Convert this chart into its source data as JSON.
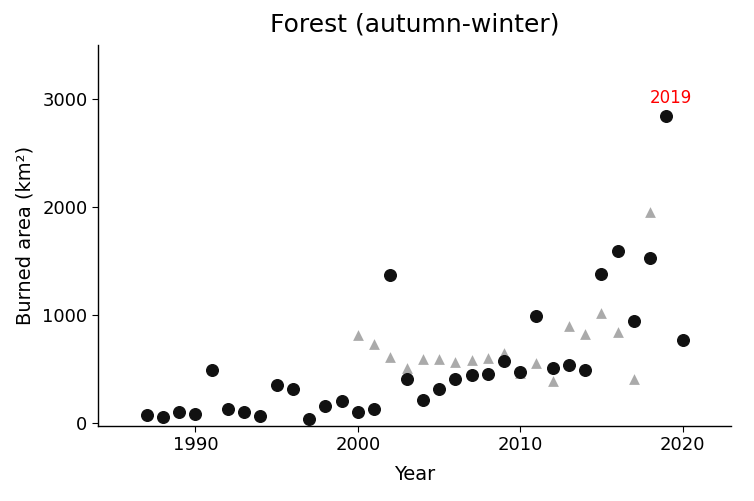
{
  "title": "Forest (autumn-winter)",
  "xlabel": "Year",
  "ylabel": "Burned area (km²)",
  "title_fontsize": 18,
  "label_fontsize": 14,
  "tick_fontsize": 13,
  "annotation_label": "2019",
  "annotation_color": "red",
  "annotation_fontsize": 12,
  "xlim": [
    1984,
    2023
  ],
  "ylim": [
    -30,
    3500
  ],
  "yticks": [
    0,
    1000,
    2000,
    3000
  ],
  "xticks": [
    1990,
    2000,
    2010,
    2020
  ],
  "background_color": "#ffffff",
  "circle_color": "#111111",
  "triangle_color": "#aaaaaa",
  "fit_color": "#111111",
  "fit_xlim": [
    1986,
    2018.5
  ],
  "circles": [
    [
      1987,
      70
    ],
    [
      1988,
      55
    ],
    [
      1989,
      100
    ],
    [
      1990,
      80
    ],
    [
      1991,
      490
    ],
    [
      1992,
      130
    ],
    [
      1993,
      100
    ],
    [
      1994,
      60
    ],
    [
      1995,
      350
    ],
    [
      1996,
      310
    ],
    [
      1997,
      30
    ],
    [
      1998,
      150
    ],
    [
      1999,
      200
    ],
    [
      2000,
      100
    ],
    [
      2001,
      130
    ],
    [
      2002,
      1370
    ],
    [
      2003,
      400
    ],
    [
      2004,
      210
    ],
    [
      2005,
      310
    ],
    [
      2006,
      400
    ],
    [
      2007,
      440
    ],
    [
      2008,
      450
    ],
    [
      2009,
      570
    ],
    [
      2010,
      470
    ],
    [
      2011,
      990
    ],
    [
      2012,
      510
    ],
    [
      2013,
      530
    ],
    [
      2014,
      490
    ],
    [
      2015,
      1380
    ],
    [
      2016,
      1590
    ],
    [
      2017,
      940
    ],
    [
      2018,
      1530
    ],
    [
      2019,
      2840
    ],
    [
      2020,
      770
    ]
  ],
  "triangles": [
    [
      2000,
      810
    ],
    [
      2001,
      730
    ],
    [
      2002,
      610
    ],
    [
      2003,
      510
    ],
    [
      2004,
      590
    ],
    [
      2005,
      590
    ],
    [
      2006,
      560
    ],
    [
      2007,
      580
    ],
    [
      2008,
      600
    ],
    [
      2009,
      650
    ],
    [
      2010,
      460
    ],
    [
      2011,
      550
    ],
    [
      2012,
      390
    ],
    [
      2013,
      900
    ],
    [
      2014,
      820
    ],
    [
      2015,
      1020
    ],
    [
      2016,
      840
    ],
    [
      2017,
      400
    ],
    [
      2018,
      1950
    ]
  ],
  "circle_size": 70,
  "triangle_size": 60
}
